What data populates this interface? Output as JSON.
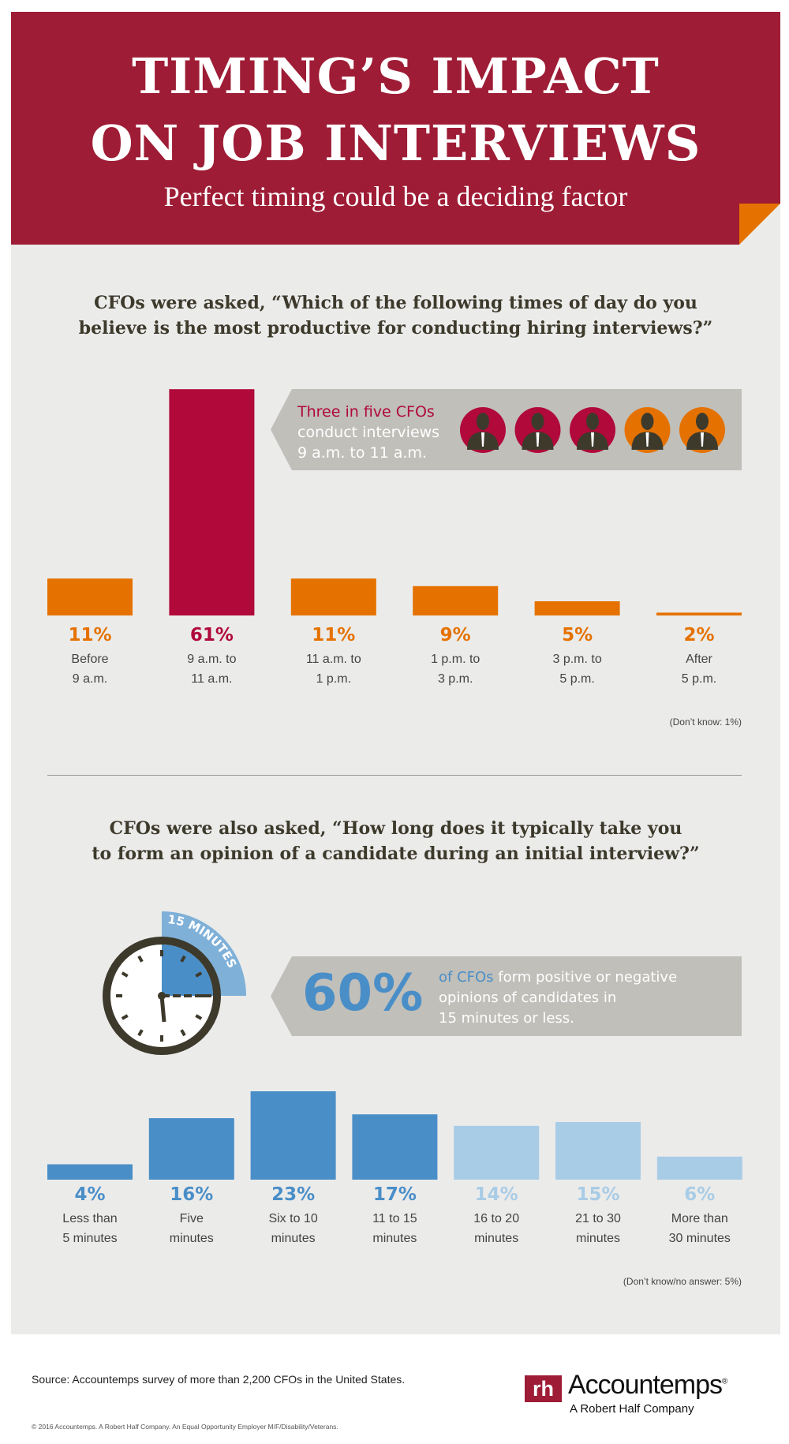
{
  "header": {
    "title_line1": "TIMING’S IMPACT",
    "title_line2": "ON JOB INTERVIEWS",
    "subtitle": "Perfect timing could be a deciding factor"
  },
  "colors": {
    "banner": "#9e1c35",
    "highlight": "#b0093a",
    "orange": "#e57200",
    "blue_dark": "#4a8ec8",
    "blue_light": "#a9cce6",
    "panel": "#ebebea",
    "callout": "#c0bfba"
  },
  "chart_data": [
    {
      "type": "bar",
      "title": "CFOs were asked, “Which of the following times of day do you believe is the most productive for conducting hiring interviews?”",
      "title_lines": [
        "CFOs were asked, “Which of the following times of day do you",
        "believe is the most productive for conducting hiring interviews?”"
      ],
      "categories": [
        [
          "Before",
          "9 a.m."
        ],
        [
          "9 a.m. to",
          "11 a.m."
        ],
        [
          "11 a.m. to",
          "1 p.m."
        ],
        [
          "1 p.m. to",
          "3 p.m."
        ],
        [
          "3 p.m. to",
          "5 p.m."
        ],
        [
          "After",
          "5 p.m."
        ]
      ],
      "values": [
        11,
        61,
        11,
        9,
        5,
        2
      ],
      "labels": [
        "11%",
        "61%",
        "11%",
        "9%",
        "5%",
        "2%"
      ],
      "highlight_index": 1,
      "note": "(Don’t know: 1%)",
      "callout": {
        "line1": "Three in five CFOs",
        "line2": "conduct interviews",
        "line3": "9 a.m. to 11 a.m.",
        "icons": [
          "person-icon-red",
          "person-icon-red",
          "person-icon-red",
          "person-icon-orange",
          "person-icon-orange"
        ]
      }
    },
    {
      "type": "bar",
      "title": "CFOs were also asked, “How long does it typically take you to form an opinion of a candidate during an initial interview?”",
      "title_lines": [
        "CFOs were also asked, “How long does it typically take you",
        "to form an opinion of a candidate during an initial interview?”"
      ],
      "categories": [
        [
          "Less than",
          "5 minutes"
        ],
        [
          "Five",
          "minutes"
        ],
        [
          "Six to 10",
          "minutes"
        ],
        [
          "11 to 15",
          "minutes"
        ],
        [
          "16 to 20",
          "minutes"
        ],
        [
          "21 to 30",
          "minutes"
        ],
        [
          "More than",
          "30 minutes"
        ]
      ],
      "values": [
        4,
        16,
        23,
        17,
        14,
        15,
        6
      ],
      "labels": [
        "4%",
        "16%",
        "23%",
        "17%",
        "14%",
        "15%",
        "6%"
      ],
      "dark_count": 4,
      "note": "(Don’t know/no answer: 5%)",
      "callout": {
        "big": "60%",
        "lead": "of CFOs",
        "line1": " form positive or negative",
        "line2": "opinions of candidates in",
        "line3": "15 minutes or less.",
        "clock_label": "15 MINUTES"
      }
    }
  ],
  "footer": {
    "source": "Source: Accountemps survey of more than 2,200 CFOs in the United States.",
    "copyright": "© 2016 Accountemps. A Robert Half Company. An Equal Opportunity Employer M/F/Disability/Veterans.",
    "logo_mark": "rh",
    "logo_name": "Accountemps",
    "logo_reg": "®",
    "logo_tagline": "A Robert Half Company"
  }
}
